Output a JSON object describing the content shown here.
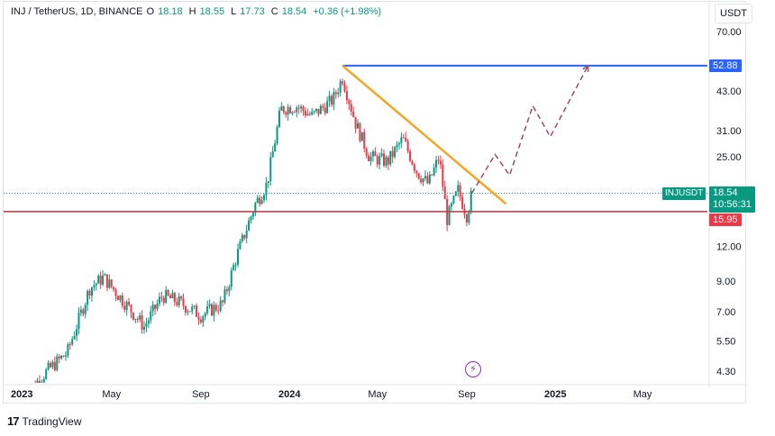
{
  "header": {
    "symbol": "INJ / TetherUS, 1D, BINANCE",
    "open_label": "O",
    "open": "18.18",
    "high_label": "H",
    "high": "18.55",
    "low_label": "L",
    "low": "17.73",
    "close_label": "C",
    "close": "18.54",
    "change": "+0.36 (+1.98%)"
  },
  "currency": "USDT",
  "price_tags": {
    "resistance": "52.88",
    "symbol": "INJUSDT",
    "current_price": "18.54",
    "countdown": "10:56:31",
    "support": "15.95"
  },
  "footer": {
    "logo": "17",
    "brand": "TradingView"
  },
  "icons": {
    "lightning": "lightning-icon"
  },
  "colors": {
    "up": "#089981",
    "down": "#f23645",
    "resistance": "#2962ff",
    "support": "#b2383f",
    "trendline": "#f5a623",
    "projection": "#9b4a6a",
    "current": "#089981"
  },
  "chart_data": {
    "type": "candlestick",
    "title": "INJ / TetherUS, 1D, BINANCE",
    "y_scale": "log",
    "y_ticks": [
      70,
      43,
      31,
      25,
      12,
      9,
      7,
      5.5,
      4.3
    ],
    "y_tick_labels": [
      "70.00",
      "43.00",
      "31.00",
      "25.00",
      "12.00",
      "9.00",
      "7.00",
      "5.50",
      "4.30"
    ],
    "x_ticks": [
      "2023",
      "May",
      "Sep",
      "2024",
      "May",
      "Sep",
      "2025",
      "May"
    ],
    "x_tick_dates": [
      "2023-01-01",
      "2023-05-01",
      "2023-09-01",
      "2024-01-01",
      "2024-05-01",
      "2024-09-01",
      "2025-01-01",
      "2025-05-01"
    ],
    "price_path": [
      [
        "2023-01-01",
        3.5
      ],
      [
        "2023-02-01",
        4.3
      ],
      [
        "2023-03-01",
        5.0
      ],
      [
        "2023-04-01",
        8.5
      ],
      [
        "2023-04-20",
        9.3
      ],
      [
        "2023-05-20",
        7.5
      ],
      [
        "2023-06-15",
        6.2
      ],
      [
        "2023-07-10",
        8.0
      ],
      [
        "2023-08-01",
        7.6
      ],
      [
        "2023-09-01",
        6.8
      ],
      [
        "2023-10-01",
        7.5
      ],
      [
        "2023-10-20",
        11.0
      ],
      [
        "2023-11-15",
        17.0
      ],
      [
        "2023-12-01",
        20.0
      ],
      [
        "2023-12-20",
        37.0
      ],
      [
        "2024-01-10",
        38.0
      ],
      [
        "2024-02-01",
        35.0
      ],
      [
        "2024-03-01",
        40.0
      ],
      [
        "2024-03-14",
        48.0
      ],
      [
        "2024-04-01",
        33.0
      ],
      [
        "2024-04-20",
        25.0
      ],
      [
        "2024-05-15",
        24.0
      ],
      [
        "2024-06-05",
        29.0
      ],
      [
        "2024-06-25",
        22.0
      ],
      [
        "2024-07-10",
        20.0
      ],
      [
        "2024-07-25",
        25.0
      ],
      [
        "2024-08-05",
        15.0
      ],
      [
        "2024-08-20",
        19.0
      ],
      [
        "2024-09-01",
        15.5
      ],
      [
        "2024-09-08",
        18.54
      ]
    ],
    "resistance_level": 52.88,
    "support_level": 15.95,
    "current_price": 18.54,
    "trendline": [
      [
        "2024-03-14",
        52.88
      ],
      [
        "2024-10-25",
        17.0
      ]
    ],
    "projection_path": [
      [
        "2024-09-08",
        18.54
      ],
      [
        "2024-10-10",
        25.5
      ],
      [
        "2024-10-30",
        21.5
      ],
      [
        "2024-12-01",
        38.0
      ],
      [
        "2024-12-25",
        29.5
      ],
      [
        "2025-02-15",
        52.88
      ]
    ]
  }
}
